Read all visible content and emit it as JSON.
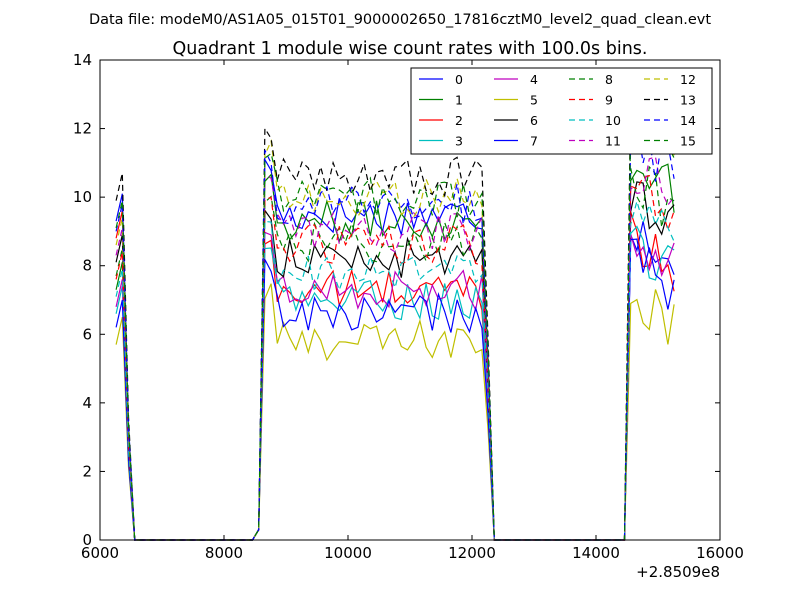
{
  "figure": {
    "suptitle": "Data file: modeM0/AS1A05_015T01_9000002650_17816cztM0_level2_quad_clean.evt"
  },
  "chart_data": {
    "type": "line",
    "title": "Quadrant 1 module wise count rates with 100.0s bins.",
    "xlabel": "",
    "ylabel": "",
    "x_offset_label": "+2.8509e8",
    "xlim": [
      6000,
      16000
    ],
    "ylim": [
      0,
      14
    ],
    "xticks": [
      6000,
      8000,
      10000,
      12000,
      14000,
      16000
    ],
    "yticks": [
      0,
      2,
      4,
      6,
      8,
      10,
      12,
      14
    ],
    "grid": false,
    "legend_position": "top-right",
    "legend_columns": 4,
    "segments": [
      {
        "x_start": 6260,
        "x_end": 6460,
        "step": 100
      },
      {
        "x_start": 8660,
        "x_end": 12160,
        "step": 100
      },
      {
        "x_start": 14560,
        "x_end": 15260,
        "step": 100
      }
    ],
    "gaps_x": [
      6560,
      8560,
      12360,
      14460
    ],
    "series": [
      {
        "name": "0",
        "color": "#0000ff",
        "dash": "solid",
        "base": 9.5,
        "seg_levels": [
          9.7,
          9.5,
          9.3
        ]
      },
      {
        "name": "1",
        "color": "#008000",
        "dash": "solid",
        "base": 9.3,
        "seg_levels": [
          7.7,
          9.3,
          11.2
        ]
      },
      {
        "name": "2",
        "color": "#ff0000",
        "dash": "solid",
        "base": 7.3,
        "seg_levels": [
          9.2,
          7.3,
          9.0
        ]
      },
      {
        "name": "3",
        "color": "#00bfbf",
        "dash": "solid",
        "base": 7.0,
        "seg_levels": [
          7.0,
          7.0,
          8.7
        ]
      },
      {
        "name": "4",
        "color": "#bf00bf",
        "dash": "solid",
        "base": 7.3,
        "seg_levels": [
          7.2,
          7.3,
          9.0
        ]
      },
      {
        "name": "5",
        "color": "#bfbf00",
        "dash": "solid",
        "base": 5.8,
        "seg_levels": [
          6.1,
          5.8,
          7.3
        ]
      },
      {
        "name": "6",
        "color": "#000000",
        "dash": "solid",
        "base": 8.2,
        "seg_levels": [
          8.5,
          8.2,
          10.3
        ]
      },
      {
        "name": "7",
        "color": "#0000ff",
        "dash": "solid",
        "base": 6.6,
        "seg_levels": [
          6.6,
          6.6,
          8.2
        ]
      },
      {
        "name": "8",
        "color": "#008000",
        "dash": "dashed",
        "base": 8.7,
        "seg_levels": [
          8.1,
          8.7,
          10.6
        ]
      },
      {
        "name": "9",
        "color": "#ff0000",
        "dash": "dashed",
        "base": 8.6,
        "seg_levels": [
          8.0,
          8.6,
          10.4
        ]
      },
      {
        "name": "10",
        "color": "#00bfbf",
        "dash": "dashed",
        "base": 7.8,
        "seg_levels": [
          7.5,
          7.8,
          9.6
        ]
      },
      {
        "name": "11",
        "color": "#bf00bf",
        "dash": "dashed",
        "base": 9.0,
        "seg_levels": [
          8.7,
          9.0,
          11.0
        ]
      },
      {
        "name": "12",
        "color": "#bfbf00",
        "dash": "dashed",
        "base": 10.0,
        "seg_levels": [
          9.0,
          10.0,
          12.3
        ]
      },
      {
        "name": "13",
        "color": "#000000",
        "dash": "dashed",
        "base": 10.6,
        "seg_levels": [
          10.3,
          10.6,
          12.7
        ]
      },
      {
        "name": "14",
        "color": "#0000ff",
        "dash": "dashed",
        "base": 9.8,
        "seg_levels": [
          9.4,
          9.8,
          11.8
        ]
      },
      {
        "name": "15",
        "color": "#008000",
        "dash": "dashed",
        "base": 10.0,
        "seg_levels": [
          9.5,
          10.0,
          12.5
        ]
      }
    ]
  }
}
